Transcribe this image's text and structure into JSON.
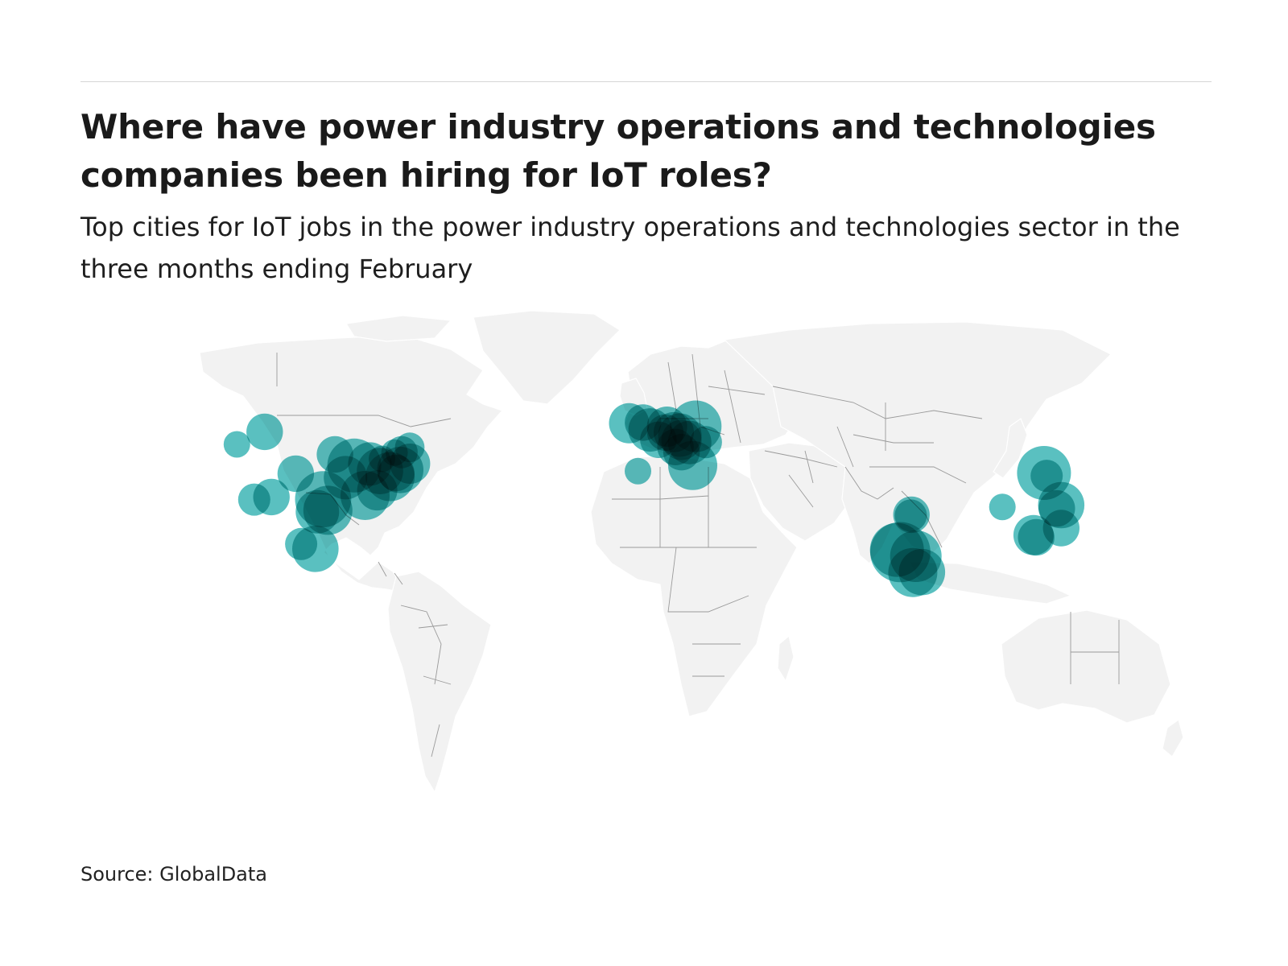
{
  "header": {
    "title": "Where have power industry operations and technologies companies been hiring for IoT roles?",
    "subtitle": "Top cities for IoT jobs in the power industry operations and technologies sector in the three months ending February"
  },
  "footer": {
    "source": "Source: GlobalData"
  },
  "map": {
    "type": "proportional-symbol world map",
    "bubble_color": "#1aa8a8",
    "bubble_opacity": 0.72,
    "land_color": "#f2f2f2",
    "border_color": "#9a9a9a"
  },
  "chart_data": {
    "type": "bubble-map",
    "title": "Where have power industry operations and technologies companies been hiring for IoT roles?",
    "subtitle": "Top cities for IoT jobs in the power industry operations and technologies sector in the three months ending February",
    "source": "Source: GlobalData",
    "points": [
      {
        "lon": -122.3,
        "lat": 47.6,
        "size": 1
      },
      {
        "lon": -114.1,
        "lat": 51.0,
        "size": 3
      },
      {
        "lon": -79.4,
        "lat": 43.7,
        "size": 1
      },
      {
        "lon": -73.6,
        "lat": 45.5,
        "size": 2
      },
      {
        "lon": -71.2,
        "lat": 46.8,
        "size": 1.5
      },
      {
        "lon": -75.7,
        "lat": 45.4,
        "size": 1
      },
      {
        "lon": -93.3,
        "lat": 44.9,
        "size": 3
      },
      {
        "lon": -87.6,
        "lat": 41.9,
        "size": 9
      },
      {
        "lon": -83.0,
        "lat": 42.3,
        "size": 5
      },
      {
        "lon": -80.0,
        "lat": 40.4,
        "size": 6
      },
      {
        "lon": -77.0,
        "lat": 38.9,
        "size": 7
      },
      {
        "lon": -74.0,
        "lat": 40.7,
        "size": 6
      },
      {
        "lon": -71.1,
        "lat": 42.4,
        "size": 4
      },
      {
        "lon": -75.2,
        "lat": 39.9,
        "size": 3
      },
      {
        "lon": -84.4,
        "lat": 33.8,
        "size": 7
      },
      {
        "lon": -80.8,
        "lat": 35.2,
        "size": 4
      },
      {
        "lon": -90.2,
        "lat": 38.6,
        "size": 5
      },
      {
        "lon": -96.8,
        "lat": 32.8,
        "size": 10
      },
      {
        "lon": -95.4,
        "lat": 29.8,
        "size": 7
      },
      {
        "lon": -98.5,
        "lat": 29.4,
        "size": 5
      },
      {
        "lon": -104.9,
        "lat": 39.7,
        "size": 3
      },
      {
        "lon": -112.1,
        "lat": 33.4,
        "size": 3
      },
      {
        "lon": -117.2,
        "lat": 32.7,
        "size": 2
      },
      {
        "lon": -99.1,
        "lat": 19.4,
        "size": 6
      },
      {
        "lon": -103.3,
        "lat": 20.7,
        "size": 2
      },
      {
        "lon": -0.1,
        "lat": 51.5,
        "size": 5
      },
      {
        "lon": -2.2,
        "lat": 53.5,
        "size": 3
      },
      {
        "lon": -6.3,
        "lat": 53.3,
        "size": 4
      },
      {
        "lon": 4.9,
        "lat": 52.4,
        "size": 4
      },
      {
        "lon": 13.4,
        "lat": 52.5,
        "size": 8
      },
      {
        "lon": 8.7,
        "lat": 50.1,
        "size": 5
      },
      {
        "lon": 6.9,
        "lat": 50.9,
        "size": 4
      },
      {
        "lon": 11.6,
        "lat": 48.1,
        "size": 5
      },
      {
        "lon": 9.2,
        "lat": 48.8,
        "size": 4
      },
      {
        "lon": 2.35,
        "lat": 48.85,
        "size": 3
      },
      {
        "lon": 7.4,
        "lat": 46.9,
        "size": 3
      },
      {
        "lon": 16.4,
        "lat": 48.2,
        "size": 2
      },
      {
        "lon": 9.2,
        "lat": 45.5,
        "size": 3
      },
      {
        "lon": 12.5,
        "lat": 41.9,
        "size": 7
      },
      {
        "lon": -3.7,
        "lat": 40.4,
        "size": 1
      },
      {
        "lon": 4.4,
        "lat": 50.8,
        "size": 3
      },
      {
        "lon": 77.2,
        "lat": 28.6,
        "size": 3
      },
      {
        "lon": 77.0,
        "lat": 28.4,
        "size": 2
      },
      {
        "lon": 72.9,
        "lat": 19.1,
        "size": 9
      },
      {
        "lon": 73.9,
        "lat": 18.5,
        "size": 12
      },
      {
        "lon": 78.5,
        "lat": 17.4,
        "size": 8
      },
      {
        "lon": 77.6,
        "lat": 13.0,
        "size": 7
      },
      {
        "lon": 80.3,
        "lat": 13.1,
        "size": 6
      },
      {
        "lon": 116.4,
        "lat": 39.9,
        "size": 9
      },
      {
        "lon": 117.2,
        "lat": 39.1,
        "size": 2
      },
      {
        "lon": 121.5,
        "lat": 31.2,
        "size": 6
      },
      {
        "lon": 120.2,
        "lat": 30.3,
        "size": 3
      },
      {
        "lon": 113.3,
        "lat": 23.1,
        "size": 4
      },
      {
        "lon": 114.1,
        "lat": 22.5,
        "size": 3
      },
      {
        "lon": 121.5,
        "lat": 25.0,
        "size": 3
      },
      {
        "lon": 104.1,
        "lat": 30.7,
        "size": 1
      }
    ]
  }
}
